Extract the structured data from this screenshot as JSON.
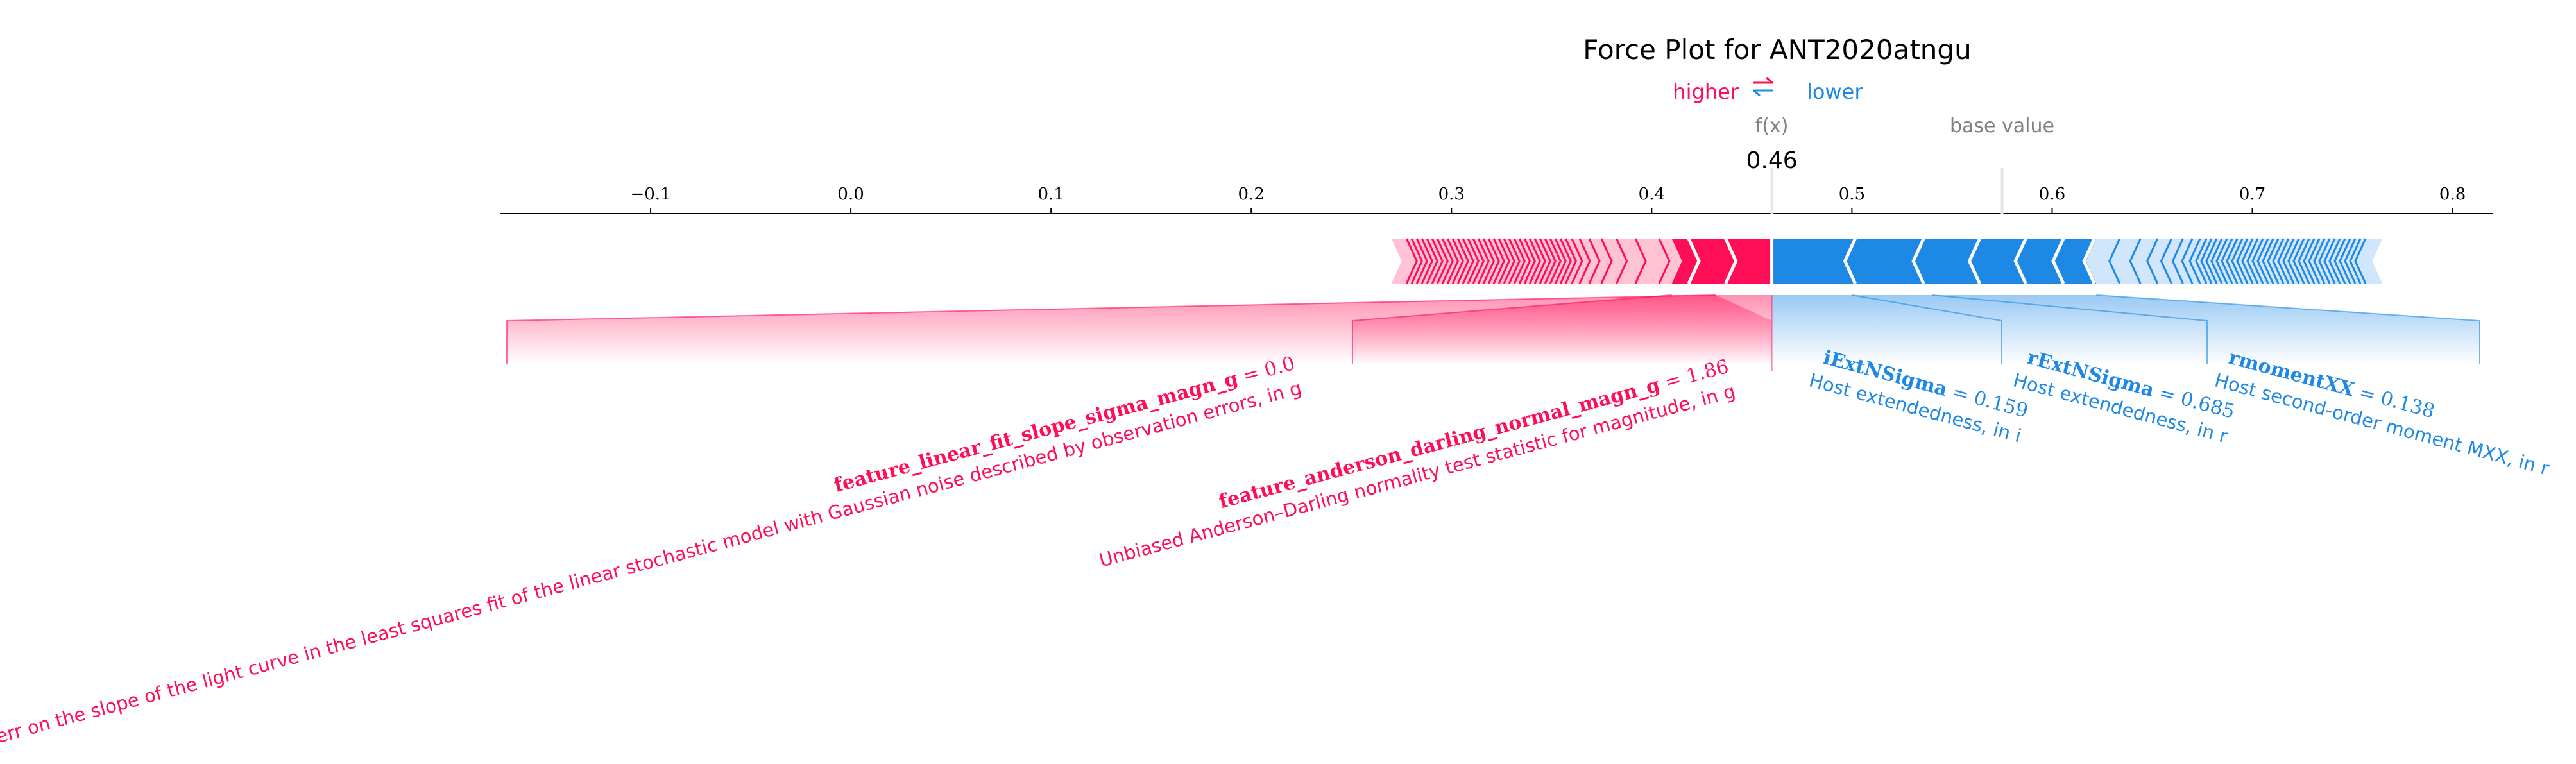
{
  "chart_data": {
    "type": "force",
    "title": "Force Plot for ANT2020atngu",
    "legend": {
      "higher": "higher",
      "lower": "lower"
    },
    "fx_label": "f(x)",
    "fx_value": 0.46,
    "fx_text": "0.46",
    "base_label": "base value",
    "base_value": 0.575,
    "xlim": [
      -0.175,
      0.82
    ],
    "ticks": [
      -0.1,
      0.0,
      0.1,
      0.2,
      0.3,
      0.4,
      0.5,
      0.6,
      0.7,
      0.8
    ],
    "tick_labels": [
      "−0.1",
      "0.0",
      "0.1",
      "0.2",
      "0.3",
      "0.4",
      "0.5",
      "0.6",
      "0.7",
      "0.8"
    ],
    "bar_extent": [
      0.27,
      0.765
    ],
    "positive_features": [
      {
        "name": "feature_linear_fit_slope_sigma_magn_g",
        "value": "0.0",
        "description": "The err on the slope of the light curve in the least squares fit of the linear stochastic model with Gaussian noise described by observation errors, in g",
        "range": [
          0.432,
          0.46
        ]
      },
      {
        "name": "feature_anderson_darling_normal_magn_g",
        "value": "1.86",
        "description": "Unbiased Anderson–Darling normality test statistic for magnitude, in g",
        "range": [
          0.41,
          0.432
        ]
      }
    ],
    "negative_features": [
      {
        "name": "iExtNSigma",
        "value": "0.159",
        "description": "Host extendedness, in i",
        "range": [
          0.46,
          0.5
        ]
      },
      {
        "name": "rExtNSigma",
        "value": "0.685",
        "description": "Host extendedness, in r",
        "range": [
          0.5,
          0.54
        ]
      },
      {
        "name": "rmomentXX",
        "value": "0.138",
        "description": "Host second-order moment MXX, in r",
        "range": [
          0.54,
          0.558
        ]
      }
    ],
    "colors": {
      "positive": "#ff0d57",
      "positive_light": "#ffc3d5",
      "negative": "#1e88e5",
      "negative_light": "#d1e6fa",
      "text": "#000000",
      "muted": "#808080"
    }
  }
}
